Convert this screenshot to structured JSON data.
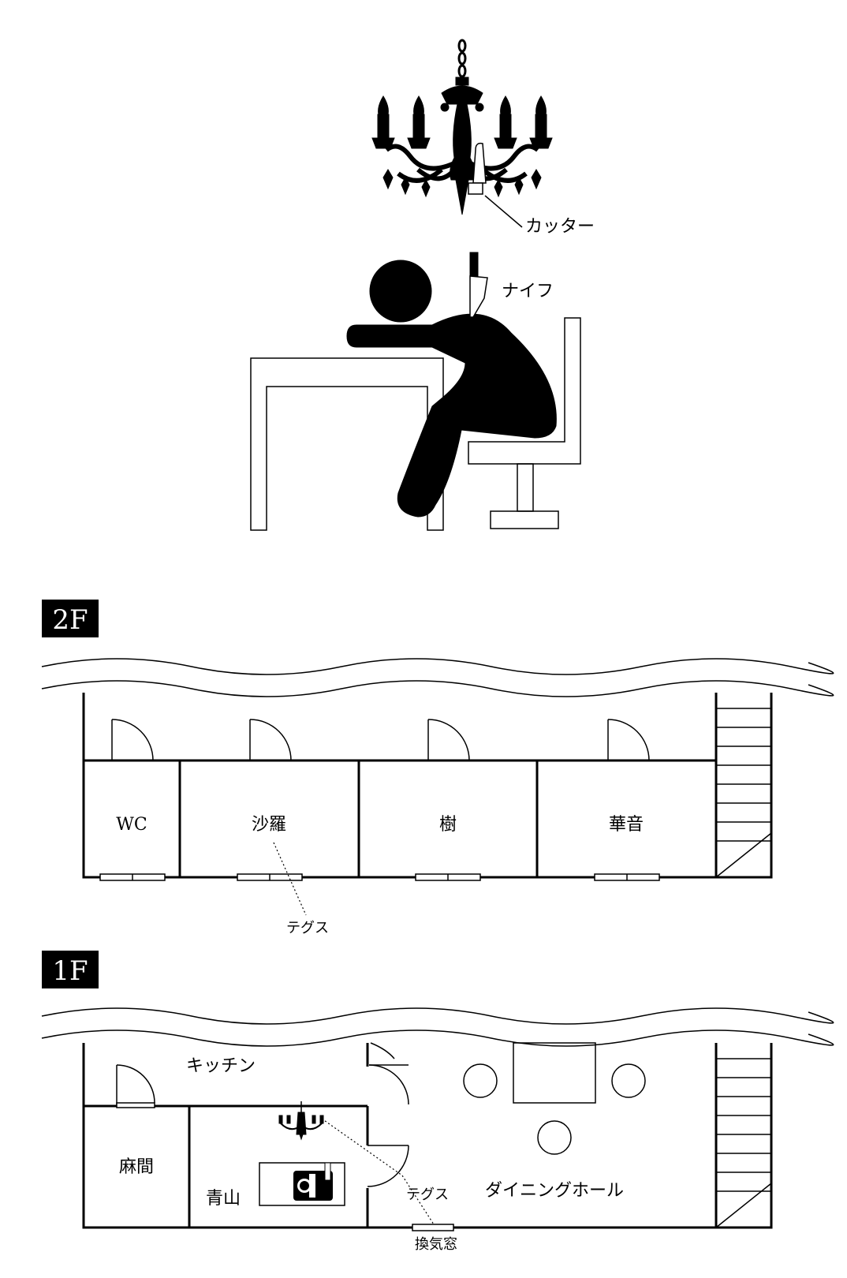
{
  "illustration": {
    "cutter_label": "カッター",
    "knife_label": "ナイフ"
  },
  "floor2": {
    "badge": "2F",
    "rooms": [
      {
        "name": "WC"
      },
      {
        "name": "沙羅"
      },
      {
        "name": "樹"
      },
      {
        "name": "華音"
      }
    ],
    "annotation": "テグス"
  },
  "floor1": {
    "badge": "1F",
    "rooms": {
      "kitchen": "キッチン",
      "mazama": "麻間",
      "aoyama": "青山",
      "dining": "ダイニングホール"
    },
    "annotation_tegusu": "テグス",
    "annotation_window": "換気窓"
  }
}
